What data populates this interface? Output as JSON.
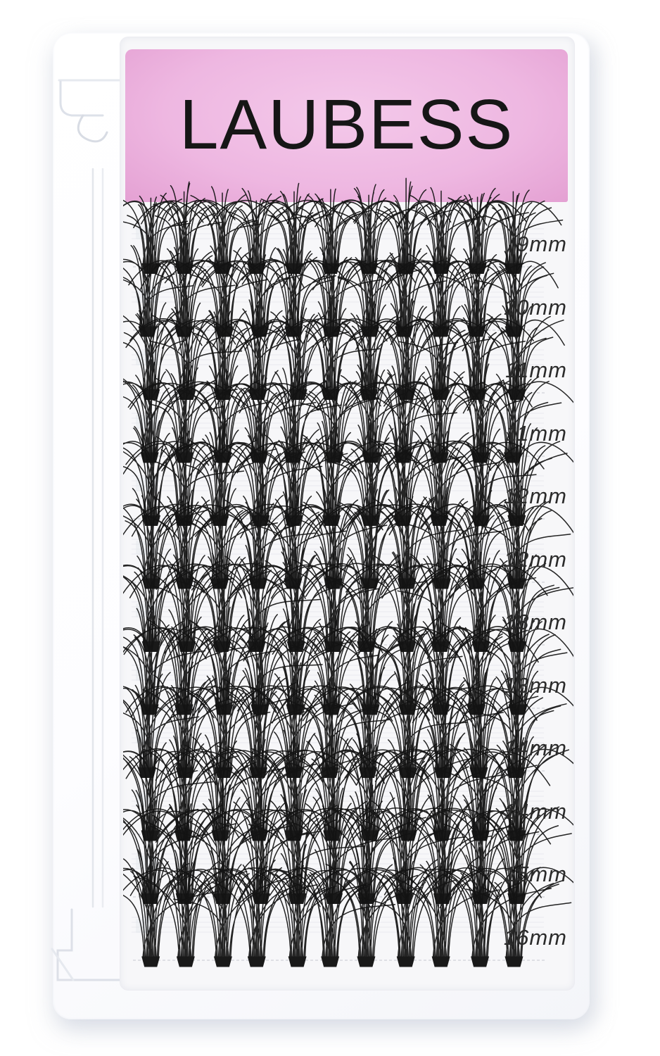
{
  "brand": "LAUBESS",
  "product": "cluster-lash-tray",
  "rows": [
    "9mm",
    "10mm",
    "11mm",
    "11mm",
    "12mm",
    "12mm",
    "13mm",
    "13mm",
    "14mm",
    "14mm",
    "15mm",
    "16mm"
  ],
  "clusters_per_row": 11,
  "colors": {
    "background": "#ffffff",
    "case_white": "#fdfdff",
    "tray_white": "#f7f7f9",
    "label_pink_center": "#f4c9ea",
    "label_pink_mid": "#eeb7e1",
    "label_pink_edge": "#e29cd0",
    "brand_text": "#161616",
    "size_text": "#2b2b2b",
    "lash_black": "#131313"
  }
}
